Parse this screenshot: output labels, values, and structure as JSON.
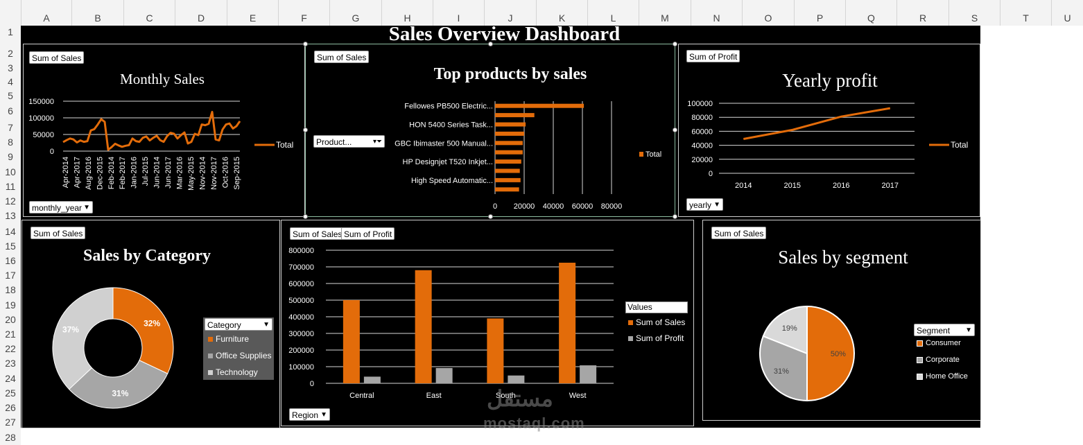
{
  "columns": [
    "A",
    "B",
    "C",
    "D",
    "E",
    "F",
    "G",
    "H",
    "I",
    "J",
    "K",
    "L",
    "M",
    "N",
    "O",
    "P",
    "Q",
    "R",
    "S",
    "T",
    "U"
  ],
  "rows": [
    "1",
    "2",
    "3",
    "4",
    "5",
    "6",
    "7",
    "8",
    "9",
    "10",
    "11",
    "12",
    "13",
    "14",
    "15",
    "16",
    "17",
    "18",
    "19",
    "20",
    "21",
    "22",
    "23",
    "24",
    "25",
    "26",
    "27",
    "28"
  ],
  "dashboard_title": "Sales Overview Dashboard",
  "monthly": {
    "field_button": "Sum of Sales",
    "filter": "monthly_year",
    "legend": "Total"
  },
  "top_products": {
    "field_button": "Sum of Sales",
    "filter": "Product...",
    "legend": "Total"
  },
  "yearly": {
    "field_button": "Sum of Profit",
    "filter": "yearly",
    "legend": "Total"
  },
  "category": {
    "field_button": "Sum of Sales",
    "filter": "Category",
    "legend": [
      "Furniture",
      "Office Supplies",
      "Technology"
    ]
  },
  "region": {
    "field_button_1": "Sum of Sales",
    "field_button_2": "Sum of Profit",
    "filter": "Region",
    "values_label": "Values",
    "legend": [
      "Sum of Sales",
      "Sum of Profit"
    ]
  },
  "segment": {
    "field_button": "Sum of Sales",
    "filter": "Segment",
    "legend": [
      "Consumer",
      "Corporate",
      "Home Office"
    ]
  },
  "watermark": {
    "arabic": "مستقل",
    "latin": "mostaql.com"
  },
  "colors": {
    "orange": "#e36c0a",
    "gray": "#a6a6a6",
    "lightgray": "#d0d0d0",
    "panel": "#000000"
  },
  "chart_data": [
    {
      "type": "line",
      "title": "Monthly Sales",
      "x_tick_labels": [
        "Apr-2014",
        "Apr-2017",
        "Aug-2016",
        "Dec-2015",
        "Feb-2014",
        "Feb-2017",
        "Jan-2016",
        "Jul-2015",
        "Jun-2014",
        "Jun-2017",
        "Mar-2016",
        "May-2015",
        "Nov-2014",
        "Nov-2017",
        "Oct-2016",
        "Sep-2015"
      ],
      "series": [
        {
          "name": "Total",
          "values": [
            27000,
            33000,
            38000,
            35000,
            26000,
            32000,
            28000,
            30000,
            62000,
            66000,
            80000,
            96000,
            88000,
            4000,
            12000,
            22000,
            17000,
            13000,
            16000,
            18000,
            38000,
            30000,
            28000,
            40000,
            44000,
            32000,
            40000,
            46000,
            33000,
            28000,
            45000,
            55000,
            52000,
            38000,
            48000,
            56000,
            23000,
            28000,
            52000,
            48000,
            80000,
            78000,
            82000,
            118000,
            35000,
            32000,
            65000,
            80000,
            83000,
            68000,
            75000,
            90000
          ]
        }
      ],
      "ylim": [
        0,
        150000
      ],
      "yticks": [
        0,
        50000,
        100000,
        150000
      ],
      "ytick_labels": [
        "0",
        "50000",
        "100000",
        "150000"
      ]
    },
    {
      "type": "bar",
      "orientation": "horizontal",
      "title": "Top products by sales",
      "category_labels": [
        "Fellowes PB500 Electric...",
        "HON 5400 Series Task...",
        "GBC Ibimaster 500 Manual...",
        "HP Designjet T520 Inkjet...",
        "High Speed Automatic..."
      ],
      "values": [
        61000,
        27000,
        21000,
        20000,
        19000,
        19000,
        18000,
        17000,
        17500,
        16500
      ],
      "series_name": "Total",
      "xlim": [
        0,
        80000
      ],
      "xticks": [
        0,
        20000,
        40000,
        60000,
        80000
      ],
      "xtick_labels": [
        "0",
        "20000",
        "40000",
        "60000",
        "80000"
      ]
    },
    {
      "type": "line",
      "title": "Yearly profit",
      "categories": [
        "2014",
        "2015",
        "2016",
        "2017"
      ],
      "series": [
        {
          "name": "Total",
          "values": [
            49000,
            62000,
            81000,
            93000
          ]
        }
      ],
      "ylim": [
        0,
        100000
      ],
      "yticks": [
        0,
        20000,
        40000,
        60000,
        80000,
        100000
      ],
      "ytick_labels": [
        "0",
        "20000",
        "40000",
        "60000",
        "80000",
        "100000"
      ]
    },
    {
      "type": "pie",
      "title": "Sales by Category",
      "categories": [
        "Furniture",
        "Office Supplies",
        "Technology"
      ],
      "values": [
        32,
        31,
        37
      ],
      "labels": [
        "32%",
        "31%",
        "37%"
      ]
    },
    {
      "type": "bar",
      "categories": [
        "Central",
        "East",
        "South",
        "West"
      ],
      "series": [
        {
          "name": "Sum of Sales",
          "values": [
            500000,
            680000,
            390000,
            725000
          ]
        },
        {
          "name": "Sum of Profit",
          "values": [
            40000,
            92000,
            47000,
            108000
          ]
        }
      ],
      "ylim": [
        0,
        800000
      ],
      "yticks": [
        0,
        100000,
        200000,
        300000,
        400000,
        500000,
        600000,
        700000,
        800000
      ],
      "ytick_labels": [
        "0",
        "100000",
        "200000",
        "300000",
        "400000",
        "500000",
        "600000",
        "700000",
        "800000"
      ]
    },
    {
      "type": "pie",
      "title": "Sales by segment",
      "categories": [
        "Consumer",
        "Corporate",
        "Home Office"
      ],
      "values": [
        50,
        31,
        19
      ],
      "labels": [
        "50%",
        "31%",
        "19%"
      ]
    }
  ]
}
